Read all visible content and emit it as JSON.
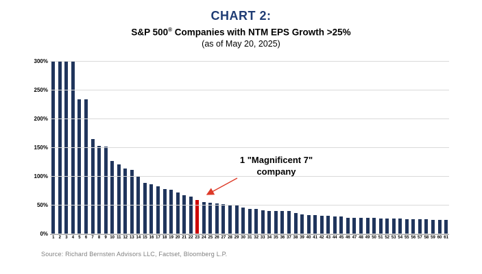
{
  "chart_data": {
    "type": "bar",
    "title": "CHART 2:",
    "subtitle_prefix": "S&P 500",
    "subtitle_reg": "®",
    "subtitle_rest": " Companies with NTM EPS Growth >25%",
    "date_note": "(as of May 20, 2025)",
    "xlabel": "",
    "ylabel": "",
    "ylim": [
      0,
      300
    ],
    "ytick_values": [
      0,
      50,
      100,
      150,
      200,
      250,
      300
    ],
    "ytick_labels": [
      "0%",
      "50%",
      "100%",
      "150%",
      "200%",
      "250%",
      "300%"
    ],
    "grid": "horizontal",
    "legend": "none",
    "categories": [
      "1",
      "2",
      "3",
      "4",
      "5",
      "6",
      "7",
      "8",
      "9",
      "10",
      "11",
      "12",
      "13",
      "14",
      "15",
      "16",
      "17",
      "18",
      "19",
      "20",
      "21",
      "22",
      "23",
      "24",
      "25",
      "26",
      "27",
      "28",
      "29",
      "30",
      "31",
      "32",
      "33",
      "34",
      "35",
      "36",
      "37",
      "38",
      "39",
      "40",
      "41",
      "42",
      "43",
      "44",
      "45",
      "46",
      "47",
      "48",
      "49",
      "50",
      "51",
      "52",
      "53",
      "54",
      "55",
      "56",
      "57",
      "58",
      "59",
      "60",
      "61"
    ],
    "values": [
      300,
      300,
      300,
      300,
      235,
      234,
      165,
      154,
      152,
      127,
      122,
      114,
      112,
      100,
      89,
      87,
      83,
      79,
      77,
      73,
      68,
      66,
      59,
      56,
      55,
      53,
      52,
      51,
      50,
      47,
      44,
      44,
      42,
      41,
      41,
      40,
      40,
      37,
      35,
      33,
      33,
      32,
      32,
      31,
      31,
      29,
      29,
      28,
      28,
      28,
      27,
      27,
      27,
      27,
      26,
      26,
      26,
      26,
      25,
      25,
      25
    ],
    "values_note": "bars 1-4 clipped at y-axis max 300%",
    "highlight_category": "23",
    "annotation": {
      "line1": "1 \"Magnificent 7\"",
      "line2": "company"
    },
    "colors": {
      "title_navy": "#1f3c74",
      "bar_navy": "#20355c",
      "highlight_red": "#cc0000",
      "arrow_red": "#dd3a28",
      "gridline_gray": "#d9d9d9",
      "source_gray": "#7f7f7f"
    },
    "source": "Source: Richard Bernsten Advisors LLC,  Factset, Bloomberg L.P."
  }
}
